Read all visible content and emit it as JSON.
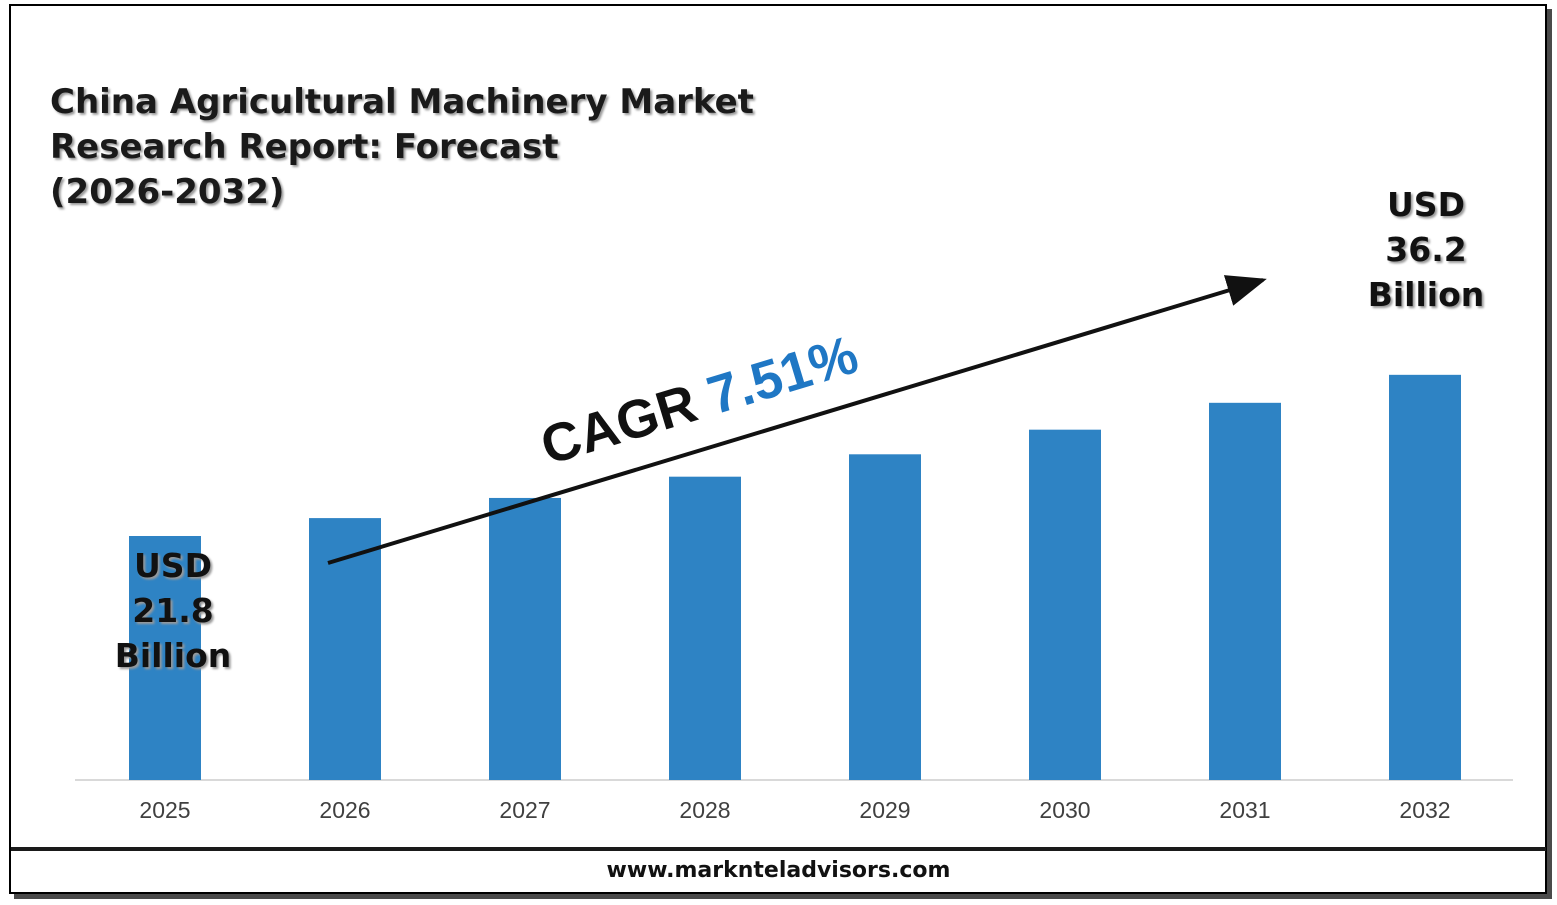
{
  "title": "China Agricultural Machinery Market Research Report: Forecast (2026-2032)",
  "title_lines": [
    "China Agricultural Machinery Market",
    "Research Report: Forecast",
    "(2026-2032)"
  ],
  "colors": {
    "bar": "#2e83c4",
    "cagr_value": "#1f77c4",
    "axis": "#d9d9d9",
    "text": "#111111"
  },
  "chart_data": {
    "type": "bar",
    "categories": [
      "2025",
      "2026",
      "2027",
      "2028",
      "2029",
      "2030",
      "2031",
      "2032"
    ],
    "values": [
      21.8,
      23.4,
      25.2,
      27.1,
      29.1,
      31.3,
      33.7,
      36.2
    ],
    "ylim": [
      0,
      40
    ],
    "grid": false,
    "legend": "none",
    "annotations": {
      "start": {
        "category": "2025",
        "lines": [
          "USD",
          "21.8",
          "Billion"
        ]
      },
      "end": {
        "category": "2032",
        "lines": [
          "USD",
          "36.2",
          "Billion"
        ]
      },
      "cagr": {
        "label": "CAGR",
        "value": "7.51%"
      }
    }
  },
  "footer": {
    "url": "www.marknteladvisors.com"
  }
}
